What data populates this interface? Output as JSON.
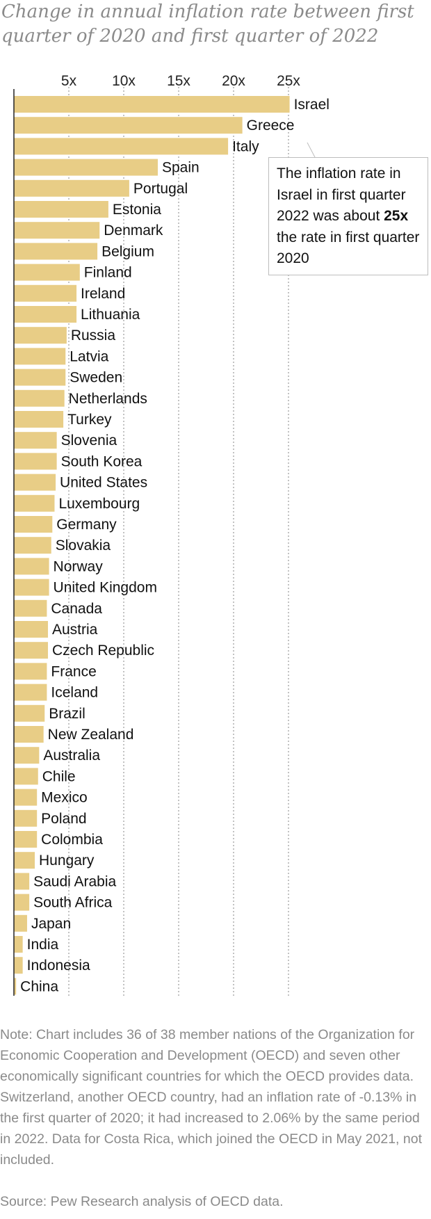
{
  "title": "Change in annual inflation rate between first quarter of 2020 and first quarter of 2022",
  "annotation": {
    "text_before": "The inflation rate in Israel in first quarter 2022 was about ",
    "bold": "25x",
    "text_after": " the rate in first quarter 2020"
  },
  "note": "Note: Chart includes 36 of 38 member nations of the Organization for Economic Cooperation and Development (OECD) and seven other economically significant countries for which the OECD provides data. Switzerland, another OECD country, had an inflation rate of -0.13% in the first quarter of 2020; it had increased to 2.06% by the same period in 2022. Data for Costa Rica, which joined the OECD in May 2021, not included.",
  "source": "Source: Pew Research analysis of OECD data.",
  "chart_data": {
    "type": "bar",
    "orientation": "horizontal",
    "bar_color": "#e8cd86",
    "grid": "dotted vertical",
    "xlim": [
      0,
      25
    ],
    "xticks": [
      5,
      10,
      15,
      20,
      25
    ],
    "xtick_labels": [
      "5x",
      "10x",
      "15x",
      "20x",
      "25x"
    ],
    "categories": [
      "Israel",
      "Greece",
      "Italy",
      "Spain",
      "Portugal",
      "Estonia",
      "Denmark",
      "Belgium",
      "Finland",
      "Ireland",
      "Lithuania",
      "Russia",
      "Latvia",
      "Sweden",
      "Netherlands",
      "Turkey",
      "Slovenia",
      "South Korea",
      "United States",
      "Luxembourg",
      "Germany",
      "Slovakia",
      "Norway",
      "United Kingdom",
      "Canada",
      "Austria",
      "Czech Republic",
      "France",
      "Iceland",
      "Brazil",
      "New Zealand",
      "Australia",
      "Chile",
      "Mexico",
      "Poland",
      "Colombia",
      "Hungary",
      "Saudi Arabia",
      "South Africa",
      "Japan",
      "India",
      "Indonesia",
      "China"
    ],
    "values": [
      25.1,
      20.8,
      19.5,
      13.1,
      10.5,
      8.6,
      7.8,
      7.6,
      6.0,
      5.7,
      5.7,
      4.8,
      4.7,
      4.7,
      4.6,
      4.5,
      3.9,
      3.9,
      3.8,
      3.7,
      3.5,
      3.4,
      3.2,
      3.2,
      3.0,
      3.1,
      3.1,
      3.0,
      3.0,
      2.8,
      2.7,
      2.3,
      2.2,
      2.1,
      2.1,
      2.1,
      1.9,
      1.4,
      1.4,
      1.2,
      0.8,
      0.8,
      0.2
    ]
  }
}
